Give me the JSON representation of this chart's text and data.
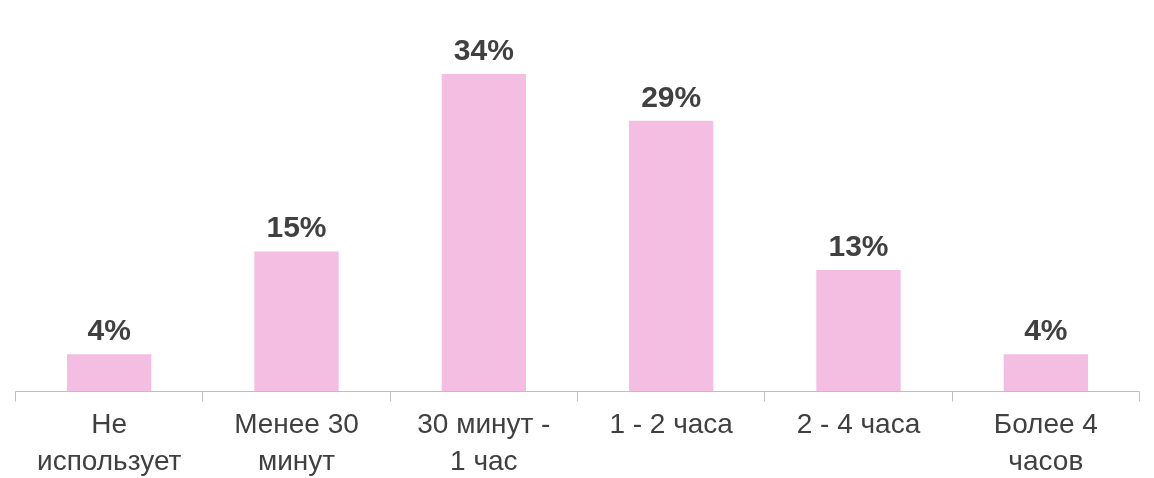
{
  "chart_data": {
    "type": "bar",
    "categories": [
      "Не использует",
      "Менее 30 минут",
      "30 минут - 1 час",
      "1 - 2 часа",
      "2 - 4 часа",
      "Более 4 часов"
    ],
    "values": [
      4,
      15,
      34,
      29,
      13,
      4
    ],
    "value_labels": [
      "4%",
      "15%",
      "34%",
      "29%",
      "13%",
      "4%"
    ],
    "color": "#f4bde2"
  }
}
